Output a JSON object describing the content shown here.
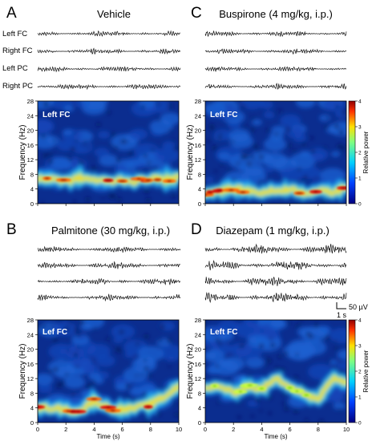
{
  "panels": [
    {
      "letter": "A",
      "title": "Vehicle",
      "spectro_label": "Left FC",
      "trace_labels": [
        "Left FC",
        "Right FC",
        "Left PC",
        "Right PC"
      ]
    },
    {
      "letter": "C",
      "title": "Buspirone (4 mg/kg, i.p.)",
      "spectro_label": "Left FC",
      "trace_labels": []
    },
    {
      "letter": "B",
      "title": "Palmitone (30 mg/kg, i.p.)",
      "spectro_label": "Lef FC",
      "trace_labels": []
    },
    {
      "letter": "D",
      "title": "Diazepam (1 mg/kg, i.p.)",
      "spectro_label": "Left FC",
      "trace_labels": []
    }
  ],
  "axes": {
    "ylabel": "Frequency (Hz)",
    "xlabel": "Time (s)",
    "yticks": [
      0,
      4,
      8,
      12,
      16,
      20,
      24,
      28
    ],
    "xticks": [
      0,
      2,
      4,
      6,
      8,
      10
    ]
  },
  "colorbar": {
    "label": "Relative power",
    "ticks": [
      0,
      1,
      2,
      3,
      4
    ]
  },
  "scale_bar": {
    "amplitude": "50 µV",
    "time": "1 s"
  },
  "colors": {
    "low": "#0a2a8c",
    "mid": "#2ac8ff",
    "high": "#ffd000",
    "max": "#b00000"
  },
  "chart_data": [
    {
      "type": "heatmap",
      "title": "Left FC",
      "xlim": [
        0,
        10
      ],
      "ylim": [
        0,
        28
      ],
      "xlabel": "Time (s)",
      "ylabel": "Frequency (Hz)",
      "ridge_x": [
        0,
        1,
        2,
        3,
        4,
        5,
        6,
        7,
        8,
        9,
        10
      ],
      "ridge_y": [
        6.5,
        7.0,
        6.0,
        7.0,
        6.5,
        6.0,
        6.5,
        6.0,
        7.0,
        6.5,
        7.0
      ]
    },
    {
      "type": "heatmap",
      "title": "Left FC",
      "xlim": [
        0,
        10
      ],
      "ylim": [
        0,
        28
      ],
      "xlabel": "Time (s)",
      "ylabel": "Frequency (Hz)",
      "ridge_x": [
        0,
        1,
        2,
        3,
        4,
        5,
        6,
        7,
        8,
        9,
        10
      ],
      "ridge_y": [
        3.0,
        3.5,
        4.0,
        3.5,
        3.0,
        3.5,
        4.0,
        3.0,
        3.5,
        3.0,
        4.5
      ]
    },
    {
      "type": "heatmap",
      "title": "Lef FC",
      "xlim": [
        0,
        10
      ],
      "ylim": [
        0,
        28
      ],
      "xlabel": "Time (s)",
      "ylabel": "Frequency (Hz)",
      "ridge_x": [
        0,
        1,
        2,
        3,
        4,
        5,
        6,
        7,
        8,
        9,
        10
      ],
      "ridge_y": [
        4.0,
        4.0,
        3.5,
        3.0,
        6.0,
        4.0,
        3.5,
        4.0,
        5.0,
        7.0,
        10.0
      ]
    },
    {
      "type": "heatmap",
      "title": "Left FC",
      "xlim": [
        0,
        10
      ],
      "ylim": [
        0,
        28
      ],
      "xlabel": "Time (s)",
      "ylabel": "Frequency (Hz)",
      "ridge_x": [
        0,
        1,
        2,
        3,
        4,
        5,
        6,
        7,
        8,
        9,
        10
      ],
      "ridge_y": [
        9.0,
        10.0,
        8.0,
        10.0,
        9.0,
        12.0,
        10.0,
        8.0,
        6.0,
        12.0,
        11.0
      ]
    }
  ]
}
